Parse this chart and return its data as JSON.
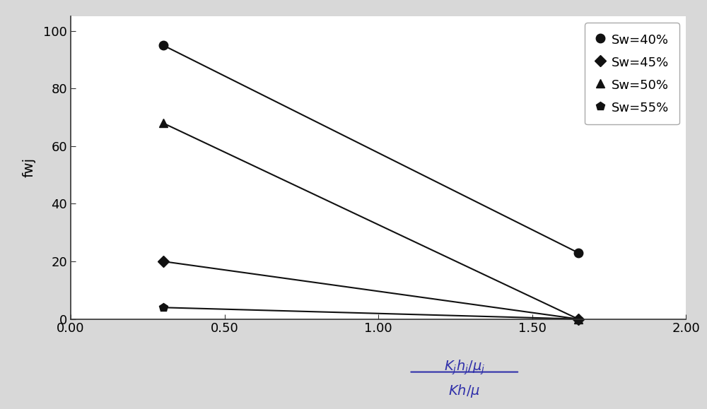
{
  "series": [
    {
      "label": "Sw=40%",
      "x": [
        0.3,
        1.65
      ],
      "y": [
        95,
        23
      ],
      "marker": "o",
      "markersize": 9,
      "color": "#111111"
    },
    {
      "label": "Sw=45%",
      "x": [
        0.3,
        1.65
      ],
      "y": [
        20,
        0
      ],
      "marker": "D",
      "markersize": 8,
      "color": "#111111"
    },
    {
      "label": "Sw=50%",
      "x": [
        0.3,
        1.65
      ],
      "y": [
        68,
        0
      ],
      "marker": "^",
      "markersize": 9,
      "color": "#111111"
    },
    {
      "label": "Sw=55%",
      "x": [
        0.3,
        1.65
      ],
      "y": [
        4,
        0
      ],
      "marker": "p",
      "markersize": 9,
      "color": "#111111"
    }
  ],
  "xlabel_numerator": "$K_jh_j/\\mu_j$",
  "xlabel_denominator": "$Kh/\\mu$",
  "xlabel_color": "#3030aa",
  "ylabel": "fwj",
  "xlim": [
    0.0,
    2.0
  ],
  "ylim": [
    0,
    105
  ],
  "xticks": [
    0.0,
    0.5,
    1.0,
    1.5,
    2.0
  ],
  "xticklabels": [
    "0.00",
    "0.50",
    "1.00",
    "1.50",
    "2.00"
  ],
  "yticks": [
    0,
    20,
    40,
    60,
    80,
    100
  ],
  "figure_bg": "#d8d8d8",
  "plot_bg": "#ffffff",
  "figsize": [
    10.0,
    5.79
  ],
  "dpi": 100,
  "linewidth": 1.5,
  "tick_fontsize": 13,
  "label_fontsize": 14,
  "legend_fontsize": 13
}
